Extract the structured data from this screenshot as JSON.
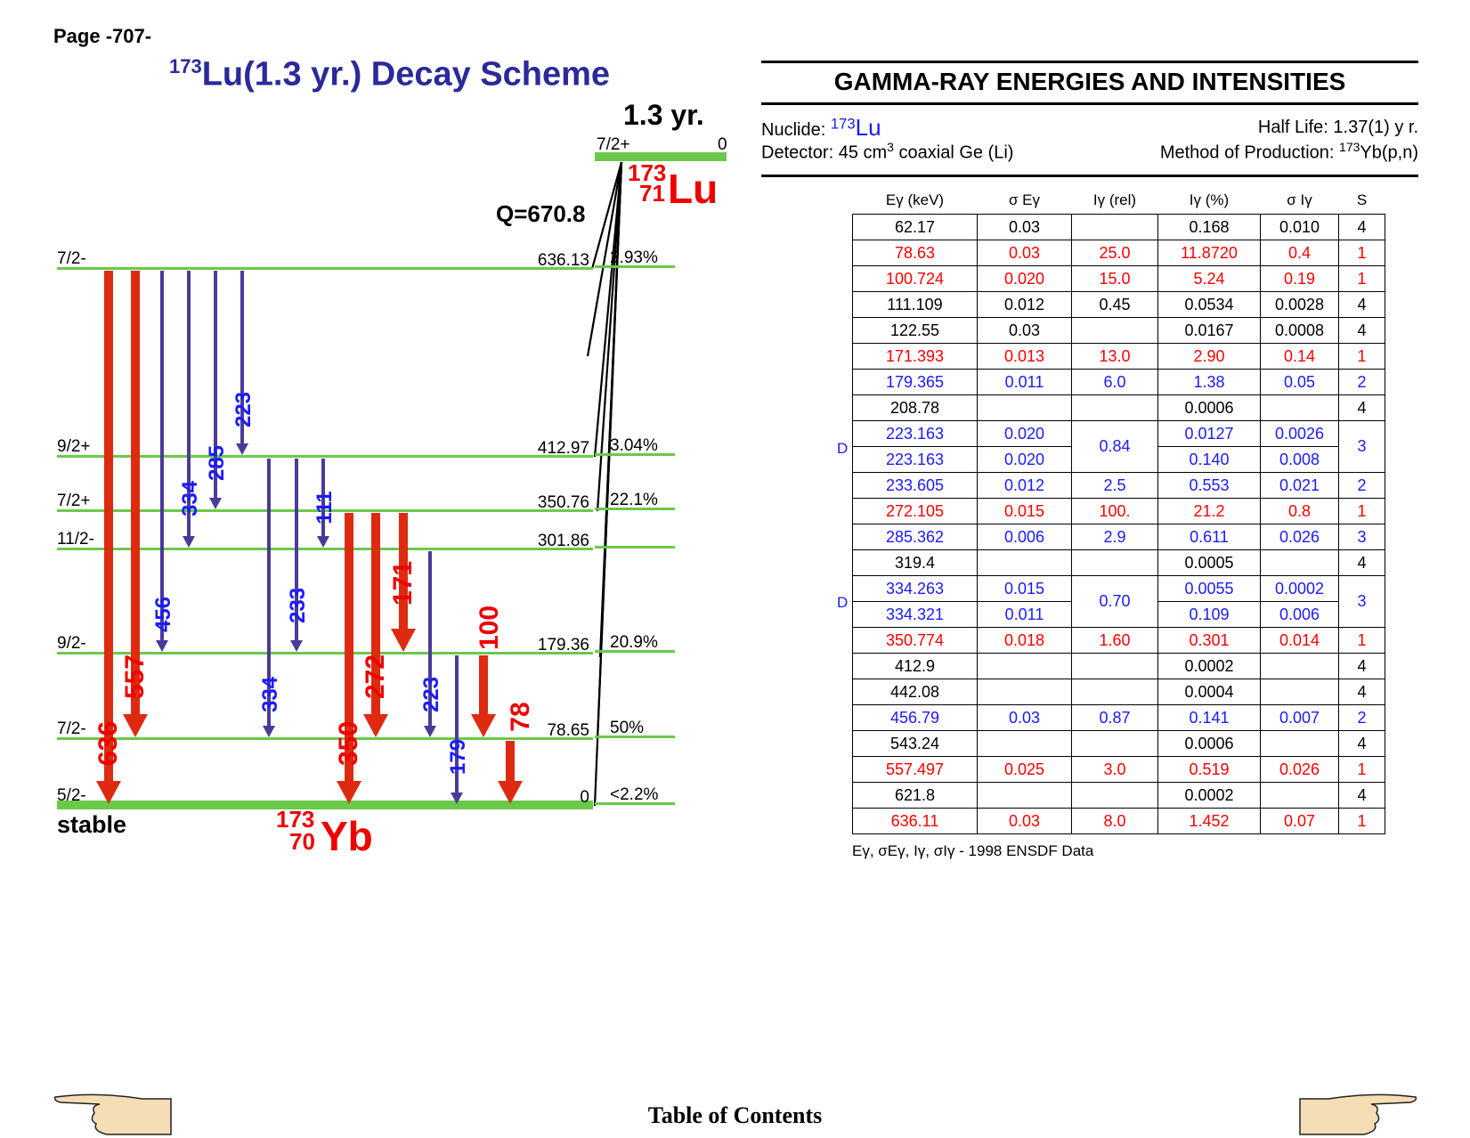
{
  "page_label": "Page -707-",
  "title": {
    "mass": "173",
    "text": "Lu(1.3 yr.) Decay Scheme"
  },
  "parent": {
    "half_life": "1.3 yr.",
    "spin": "7/2+",
    "energy": "0",
    "mass": "173",
    "z": "71",
    "symbol": "Lu",
    "q_value": "Q=670.8"
  },
  "daughter": {
    "mass": "173",
    "z": "70",
    "symbol": "Yb",
    "stable_label": "stable"
  },
  "levels": [
    {
      "spin": "7/2-",
      "energy": "636.13",
      "branch": "2.93%"
    },
    {
      "spin": "9/2+",
      "energy": "412.97",
      "branch": "3.04%"
    },
    {
      "spin": "7/2+",
      "energy": "350.76",
      "branch": "22.1%"
    },
    {
      "spin": "11/2-",
      "energy": "301.86",
      "branch": ""
    },
    {
      "spin": "9/2-",
      "energy": "179.36",
      "branch": "20.9%"
    },
    {
      "spin": "7/2-",
      "energy": "78.65",
      "branch": "50%"
    },
    {
      "spin": "5/2-",
      "energy": "0",
      "branch": "<2.2%"
    }
  ],
  "transitions": [
    {
      "label": "636",
      "color": "#dd2a10"
    },
    {
      "label": "557",
      "color": "#dd2a10"
    },
    {
      "label": "456",
      "color": "#1a1aff"
    },
    {
      "label": "334",
      "color": "#1a1aff"
    },
    {
      "label": "285",
      "color": "#1a1aff"
    },
    {
      "label": "223",
      "color": "#1a1aff"
    },
    {
      "label": "334",
      "color": "#1a1aff"
    },
    {
      "label": "233",
      "color": "#1a1aff"
    },
    {
      "label": "111",
      "color": "#1a1aff"
    },
    {
      "label": "350",
      "color": "#dd2a10"
    },
    {
      "label": "272",
      "color": "#dd2a10"
    },
    {
      "label": "171",
      "color": "#dd2a10"
    },
    {
      "label": "223",
      "color": "#1a1aff"
    },
    {
      "label": "179",
      "color": "#1a1aff"
    },
    {
      "label": "100",
      "color": "#dd2a10"
    },
    {
      "label": "78",
      "color": "#dd2a10"
    }
  ],
  "panel": {
    "title": "GAMMA-RAY ENERGIES AND INTENSITIES",
    "nuclide_label": "Nuclide:",
    "nuclide_mass": "173",
    "nuclide_symbol": "Lu",
    "half_life": "Half Life: 1.37(1) y r.",
    "detector_prefix": "Detector: 45 cm",
    "detector_sup": "3",
    "detector_suffix": " coaxial Ge (Li)",
    "production_prefix": "Method of Production: ",
    "production_sup": "173",
    "production_suffix": "Yb(p,n)"
  },
  "table": {
    "headers": [
      "Eγ (keV)",
      "σ Eγ",
      "Iγ (rel)",
      "Iγ (%)",
      "σ Iγ",
      "S"
    ],
    "d_marker": "D",
    "rows": [
      [
        "62.17",
        "0.03",
        "",
        "0.168",
        "0.010",
        "4"
      ],
      [
        "78.63",
        "0.03",
        "25.0",
        "11.8720",
        "0.4",
        "1"
      ],
      [
        "100.724",
        "0.020",
        "15.0",
        "5.24",
        "0.19",
        "1"
      ],
      [
        "111.109",
        "0.012",
        "0.45",
        "0.0534",
        "0.0028",
        "4"
      ],
      [
        "122.55",
        "0.03",
        "",
        "0.0167",
        "0.0008",
        "4"
      ],
      [
        "171.393",
        "0.013",
        "13.0",
        "2.90",
        "0.14",
        "1"
      ],
      [
        "179.365",
        "0.011",
        "6.0",
        "1.38",
        "0.05",
        "2"
      ],
      [
        "208.78",
        "",
        "",
        "0.0006",
        "",
        "4"
      ],
      [
        "223.163",
        "0.020",
        "0.84",
        "0.0127",
        "0.0026",
        "3"
      ],
      [
        "223.163",
        "0.020",
        "",
        "0.140",
        "0.008",
        ""
      ],
      [
        "233.605",
        "0.012",
        "2.5",
        "0.553",
        "0.021",
        "2"
      ],
      [
        "272.105",
        "0.015",
        "100.",
        "21.2",
        "0.8",
        "1"
      ],
      [
        "285.362",
        "0.006",
        "2.9",
        "0.611",
        "0.026",
        "3"
      ],
      [
        "319.4",
        "",
        "",
        "0.0005",
        "",
        "4"
      ],
      [
        "334.263",
        "0.015",
        "0.70",
        "0.0055",
        "0.0002",
        "3"
      ],
      [
        "334.321",
        "0.011",
        "",
        "0.109",
        "0.006",
        ""
      ],
      [
        "350.774",
        "0.018",
        "1.60",
        "0.301",
        "0.014",
        "1"
      ],
      [
        "412.9",
        "",
        "",
        "0.0002",
        "",
        "4"
      ],
      [
        "442.08",
        "",
        "",
        "0.0004",
        "",
        "4"
      ],
      [
        "456.79",
        "0.03",
        "0.87",
        "0.141",
        "0.007",
        "2"
      ],
      [
        "543.24",
        "",
        "",
        "0.0006",
        "",
        "4"
      ],
      [
        "557.497",
        "0.025",
        "3.0",
        "0.519",
        "0.026",
        "1"
      ],
      [
        "621.8",
        "",
        "",
        "0.0002",
        "",
        "4"
      ],
      [
        "636.11",
        "0.03",
        "8.0",
        "1.452",
        "0.07",
        "1"
      ]
    ]
  },
  "footnote": "Eγ, σEγ, Iγ, σIγ - 1998 ENSDF Data",
  "footer": {
    "toc": "Table of Contents"
  },
  "colors": {
    "level": "#6ac94a",
    "red": "#dd2a10",
    "blue": "#1a1aff",
    "title": "#2a2a9a"
  }
}
